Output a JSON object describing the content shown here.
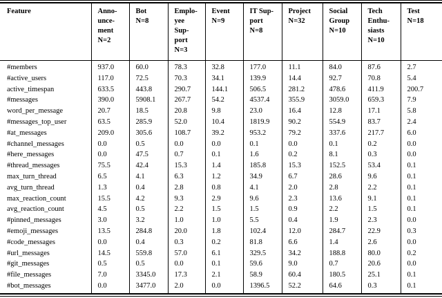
{
  "table": {
    "columns": [
      {
        "label": "Feature"
      },
      {
        "label": "Anno-\nunce-\nment\nN=2"
      },
      {
        "label": "Bot\nN=8"
      },
      {
        "label": "Emplo-\nyee\nSup-\nport\nN=3"
      },
      {
        "label": "Event\nN=9"
      },
      {
        "label": "IT Sup-\nport\nN=8"
      },
      {
        "label": "Project\nN=32"
      },
      {
        "label": "Social\nGroup\nN=10"
      },
      {
        "label": "Tech\nEnthu-\nsiasts\nN=10"
      },
      {
        "label": "Test\nN=18"
      }
    ],
    "rows": [
      {
        "feature": "#members",
        "values": [
          "937.0",
          "60.0",
          "78.3",
          "32.8",
          "177.0",
          "11.1",
          "84.0",
          "87.6",
          "2.7"
        ]
      },
      {
        "feature": "#active_users",
        "values": [
          "117.0",
          "72.5",
          "70.3",
          "34.1",
          "139.9",
          "14.4",
          "92.7",
          "70.8",
          "5.4"
        ]
      },
      {
        "feature": "active_timespan",
        "values": [
          "633.5",
          "443.8",
          "290.7",
          "144.1",
          "506.5",
          "281.2",
          "478.6",
          "411.9",
          "200.7"
        ]
      },
      {
        "feature": "#messages",
        "values": [
          "390.0",
          "5908.1",
          "267.7",
          "54.2",
          "4537.4",
          "355.9",
          "3059.0",
          "659.3",
          "7.9"
        ]
      },
      {
        "feature": "word_per_message",
        "values": [
          "20.7",
          "18.5",
          "20.8",
          "9.8",
          "23.0",
          "16.4",
          "12.8",
          "17.1",
          "5.8"
        ]
      },
      {
        "feature": "#messages_top_user",
        "values": [
          "63.5",
          "285.9",
          "52.0",
          "10.4",
          "1819.9",
          "90.2",
          "554.9",
          "83.7",
          "2.4"
        ]
      },
      {
        "feature": "#at_messages",
        "values": [
          "209.0",
          "305.6",
          "108.7",
          "39.2",
          "953.2",
          "79.2",
          "337.6",
          "217.7",
          "6.0"
        ]
      },
      {
        "feature": "#channel_messages",
        "values": [
          "0.0",
          "0.5",
          "0.0",
          "0.0",
          "0.1",
          "0.0",
          "0.1",
          "0.2",
          "0.0"
        ]
      },
      {
        "feature": "#here_messages",
        "values": [
          "0.0",
          "47.5",
          "0.7",
          "0.1",
          "1.6",
          "0.2",
          "8.1",
          "0.3",
          "0.0"
        ]
      },
      {
        "feature": "#thread_messages",
        "values": [
          "75.5",
          "42.4",
          "15.3",
          "1.4",
          "185.8",
          "15.3",
          "152.5",
          "53.4",
          "0.1"
        ]
      },
      {
        "feature": "max_turn_thread",
        "values": [
          "6.5",
          "4.1",
          "6.3",
          "1.2",
          "34.9",
          "6.7",
          "28.6",
          "9.6",
          "0.1"
        ]
      },
      {
        "feature": "avg_turn_thread",
        "values": [
          "1.3",
          "0.4",
          "2.8",
          "0.8",
          "4.1",
          "2.0",
          "2.8",
          "2.2",
          "0.1"
        ]
      },
      {
        "feature": "max_reaction_count",
        "values": [
          "15.5",
          "4.2",
          "9.3",
          "2.9",
          "9.6",
          "2.3",
          "13.6",
          "9.1",
          "0.1"
        ]
      },
      {
        "feature": "avg_reaction_count",
        "values": [
          "4.5",
          "0.5",
          "2.2",
          "1.5",
          "1.5",
          "0.9",
          "2.2",
          "1.5",
          "0.1"
        ]
      },
      {
        "feature": "#pinned_messages",
        "values": [
          "3.0",
          "3.2",
          "1.0",
          "1.0",
          "5.5",
          "0.4",
          "1.9",
          "2.3",
          "0.0"
        ]
      },
      {
        "feature": "#emoji_messages",
        "values": [
          "13.5",
          "284.8",
          "20.0",
          "1.8",
          "102.4",
          "12.0",
          "284.7",
          "22.9",
          "0.3"
        ]
      },
      {
        "feature": "#code_messages",
        "values": [
          "0.0",
          "0.4",
          "0.3",
          "0.2",
          "81.8",
          "6.6",
          "1.4",
          "2.6",
          "0.0"
        ]
      },
      {
        "feature": "#url_messages",
        "values": [
          "14.5",
          "559.8",
          "57.0",
          "6.1",
          "329.5",
          "34.2",
          "188.8",
          "80.0",
          "0.2"
        ]
      },
      {
        "feature": "#git_messages",
        "values": [
          "0.5",
          "0.5",
          "0.0",
          "0.1",
          "59.6",
          "9.0",
          "0.7",
          "20.6",
          "0.0"
        ]
      },
      {
        "feature": "#file_messages",
        "values": [
          "7.0",
          "3345.0",
          "17.3",
          "2.1",
          "58.9",
          "60.4",
          "180.5",
          "25.1",
          "0.1"
        ]
      },
      {
        "feature": "#bot_messages",
        "values": [
          "0.0",
          "3477.0",
          "2.0",
          "0.0",
          "1396.5",
          "52.2",
          "64.6",
          "0.3",
          "0.1"
        ]
      }
    ]
  },
  "colors": {
    "text": "#000000",
    "background": "#ffffff",
    "rule": "#000000"
  }
}
